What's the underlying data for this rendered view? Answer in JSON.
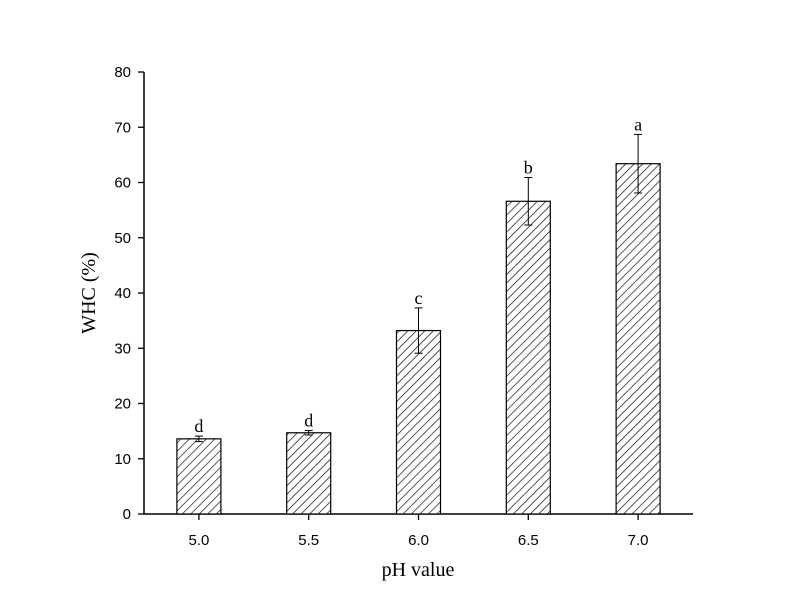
{
  "chart_data": {
    "type": "bar",
    "title": "",
    "xlabel": "pH value",
    "ylabel": "WHC (%)",
    "categories": [
      "5.0",
      "5.5",
      "6.0",
      "6.5",
      "7.0"
    ],
    "values": [
      13.6,
      14.7,
      33.2,
      56.6,
      63.4
    ],
    "error": [
      0.5,
      0.4,
      4.1,
      4.3,
      5.3
    ],
    "significance_labels": [
      "d",
      "d",
      "c",
      "b",
      "a"
    ],
    "ylim": [
      0,
      80
    ],
    "yticks": [
      0,
      10,
      20,
      30,
      40,
      50,
      60,
      70,
      80
    ],
    "grid": false,
    "bar_pattern": "diagonal-hatch",
    "colors": {
      "bar_fill": "#ffffff",
      "hatch": "#000000",
      "axis": "#000000"
    }
  }
}
